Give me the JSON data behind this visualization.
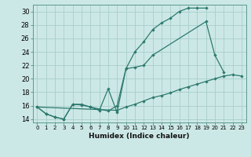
{
  "line1_x": [
    0,
    1,
    2,
    3,
    4,
    5,
    6,
    7,
    8,
    9,
    10,
    11,
    12,
    13,
    14,
    15,
    16,
    17,
    18,
    19
  ],
  "line1_y": [
    15.8,
    14.8,
    14.3,
    14.0,
    16.2,
    16.1,
    15.8,
    15.5,
    15.2,
    16.0,
    21.5,
    24.0,
    25.5,
    27.3,
    28.3,
    29.0,
    30.0,
    30.5,
    30.5,
    30.5
  ],
  "line2_x": [
    0,
    1,
    2,
    3,
    4,
    5,
    6,
    7,
    8,
    9,
    10,
    11,
    12,
    13,
    19,
    20,
    21
  ],
  "line2_y": [
    15.8,
    14.8,
    14.3,
    14.0,
    16.2,
    16.2,
    15.8,
    15.3,
    18.5,
    15.0,
    21.5,
    21.7,
    22.0,
    23.5,
    28.5,
    23.5,
    21.0
  ],
  "line2_break": 13,
  "line3_x": [
    0,
    9,
    10,
    11,
    12,
    13,
    14,
    15,
    16,
    17,
    18,
    19,
    20,
    21,
    22,
    23
  ],
  "line3_y": [
    15.8,
    15.3,
    15.8,
    16.2,
    16.7,
    17.2,
    17.5,
    17.9,
    18.4,
    18.8,
    19.2,
    19.6,
    20.0,
    20.4,
    20.6,
    20.4
  ],
  "xlabel": "Humidex (Indice chaleur)",
  "xlim": [
    -0.5,
    23.5
  ],
  "ylim": [
    13.5,
    31.0
  ],
  "yticks": [
    14,
    16,
    18,
    20,
    22,
    24,
    26,
    28,
    30
  ],
  "xticks": [
    0,
    1,
    2,
    3,
    4,
    5,
    6,
    7,
    8,
    9,
    10,
    11,
    12,
    13,
    14,
    15,
    16,
    17,
    18,
    19,
    20,
    21,
    22,
    23
  ],
  "xtick_labels": [
    "0",
    "1",
    "2",
    "3",
    "4",
    "5",
    "6",
    "7",
    "8",
    "9",
    "10",
    "11",
    "12",
    "13",
    "14",
    "15",
    "16",
    "17",
    "18",
    "19",
    "20",
    "21",
    "22",
    "23"
  ],
  "bg_color": "#cce8e6",
  "grid_color": "#a8ceca",
  "line_color": "#2d7a6e",
  "spine_color": "#5a9a90"
}
